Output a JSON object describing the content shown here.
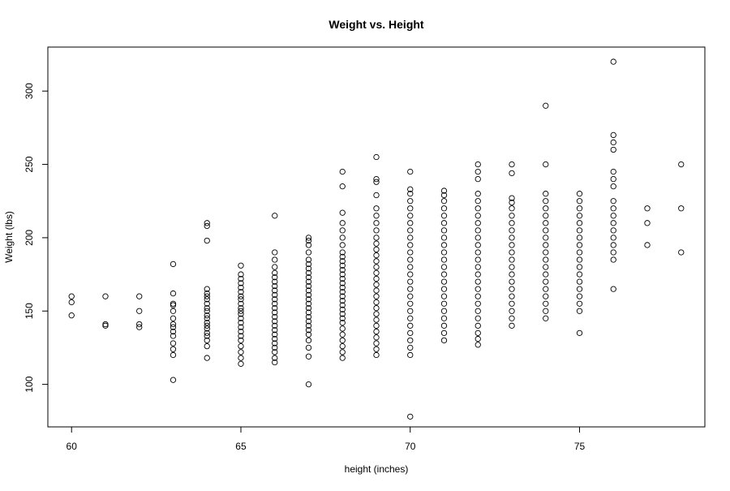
{
  "chart_data": {
    "type": "scatter",
    "title": "Weight vs. Height",
    "xlabel": "height (inches)",
    "ylabel": "Weight (lbs)",
    "xlim": [
      59.3,
      78.7
    ],
    "ylim": [
      71,
      330
    ],
    "xticks": [
      60,
      65,
      70,
      75
    ],
    "yticks": [
      100,
      150,
      200,
      250,
      300
    ],
    "grid": false,
    "legend": "none",
    "marker": "open-circle",
    "colors": {
      "points": "#000000",
      "axes": "#000000",
      "background": "#ffffff"
    },
    "points": [
      [
        60,
        147
      ],
      [
        60,
        156
      ],
      [
        60,
        160
      ],
      [
        61,
        140
      ],
      [
        61,
        141
      ],
      [
        61,
        160
      ],
      [
        62,
        139
      ],
      [
        62,
        141
      ],
      [
        62,
        150
      ],
      [
        62,
        160
      ],
      [
        63,
        103
      ],
      [
        63,
        120
      ],
      [
        63,
        124
      ],
      [
        63,
        128
      ],
      [
        63,
        133
      ],
      [
        63,
        136
      ],
      [
        63,
        139
      ],
      [
        63,
        141
      ],
      [
        63,
        145
      ],
      [
        63,
        150
      ],
      [
        63,
        154
      ],
      [
        63,
        155
      ],
      [
        63,
        162
      ],
      [
        63,
        182
      ],
      [
        64,
        118
      ],
      [
        64,
        126
      ],
      [
        64,
        130
      ],
      [
        64,
        133
      ],
      [
        64,
        135
      ],
      [
        64,
        138
      ],
      [
        64,
        140
      ],
      [
        64,
        142
      ],
      [
        64,
        145
      ],
      [
        64,
        147
      ],
      [
        64,
        150
      ],
      [
        64,
        152
      ],
      [
        64,
        155
      ],
      [
        64,
        158
      ],
      [
        64,
        160
      ],
      [
        64,
        162
      ],
      [
        64,
        165
      ],
      [
        64,
        198
      ],
      [
        64,
        208
      ],
      [
        64,
        210
      ],
      [
        65,
        114
      ],
      [
        65,
        118
      ],
      [
        65,
        122
      ],
      [
        65,
        126
      ],
      [
        65,
        130
      ],
      [
        65,
        133
      ],
      [
        65,
        136
      ],
      [
        65,
        139
      ],
      [
        65,
        142
      ],
      [
        65,
        145
      ],
      [
        65,
        148
      ],
      [
        65,
        150
      ],
      [
        65,
        152
      ],
      [
        65,
        155
      ],
      [
        65,
        158
      ],
      [
        65,
        160
      ],
      [
        65,
        163
      ],
      [
        65,
        166
      ],
      [
        65,
        169
      ],
      [
        65,
        172
      ],
      [
        65,
        175
      ],
      [
        65,
        181
      ],
      [
        66,
        115
      ],
      [
        66,
        118
      ],
      [
        66,
        122
      ],
      [
        66,
        125
      ],
      [
        66,
        128
      ],
      [
        66,
        131
      ],
      [
        66,
        134
      ],
      [
        66,
        137
      ],
      [
        66,
        140
      ],
      [
        66,
        143
      ],
      [
        66,
        146
      ],
      [
        66,
        149
      ],
      [
        66,
        152
      ],
      [
        66,
        155
      ],
      [
        66,
        158
      ],
      [
        66,
        161
      ],
      [
        66,
        164
      ],
      [
        66,
        167
      ],
      [
        66,
        170
      ],
      [
        66,
        173
      ],
      [
        66,
        176
      ],
      [
        66,
        180
      ],
      [
        66,
        185
      ],
      [
        66,
        190
      ],
      [
        66,
        215
      ],
      [
        67,
        100
      ],
      [
        67,
        119
      ],
      [
        67,
        125
      ],
      [
        67,
        130
      ],
      [
        67,
        134
      ],
      [
        67,
        137
      ],
      [
        67,
        140
      ],
      [
        67,
        143
      ],
      [
        67,
        146
      ],
      [
        67,
        149
      ],
      [
        67,
        152
      ],
      [
        67,
        155
      ],
      [
        67,
        158
      ],
      [
        67,
        161
      ],
      [
        67,
        164
      ],
      [
        67,
        167
      ],
      [
        67,
        170
      ],
      [
        67,
        173
      ],
      [
        67,
        176
      ],
      [
        67,
        179
      ],
      [
        67,
        182
      ],
      [
        67,
        185
      ],
      [
        67,
        190
      ],
      [
        67,
        195
      ],
      [
        67,
        198
      ],
      [
        67,
        200
      ],
      [
        68,
        118
      ],
      [
        68,
        122
      ],
      [
        68,
        126
      ],
      [
        68,
        130
      ],
      [
        68,
        134
      ],
      [
        68,
        138
      ],
      [
        68,
        142
      ],
      [
        68,
        145
      ],
      [
        68,
        148
      ],
      [
        68,
        151
      ],
      [
        68,
        154
      ],
      [
        68,
        157
      ],
      [
        68,
        160
      ],
      [
        68,
        163
      ],
      [
        68,
        166
      ],
      [
        68,
        169
      ],
      [
        68,
        172
      ],
      [
        68,
        175
      ],
      [
        68,
        178
      ],
      [
        68,
        181
      ],
      [
        68,
        184
      ],
      [
        68,
        187
      ],
      [
        68,
        190
      ],
      [
        68,
        195
      ],
      [
        68,
        200
      ],
      [
        68,
        205
      ],
      [
        68,
        210
      ],
      [
        68,
        217
      ],
      [
        68,
        235
      ],
      [
        68,
        245
      ],
      [
        69,
        120
      ],
      [
        69,
        124
      ],
      [
        69,
        128
      ],
      [
        69,
        132
      ],
      [
        69,
        136
      ],
      [
        69,
        140
      ],
      [
        69,
        144
      ],
      [
        69,
        148
      ],
      [
        69,
        152
      ],
      [
        69,
        156
      ],
      [
        69,
        160
      ],
      [
        69,
        164
      ],
      [
        69,
        168
      ],
      [
        69,
        172
      ],
      [
        69,
        176
      ],
      [
        69,
        180
      ],
      [
        69,
        184
      ],
      [
        69,
        188
      ],
      [
        69,
        192
      ],
      [
        69,
        196
      ],
      [
        69,
        200
      ],
      [
        69,
        205
      ],
      [
        69,
        210
      ],
      [
        69,
        215
      ],
      [
        69,
        220
      ],
      [
        69,
        229
      ],
      [
        69,
        238
      ],
      [
        69,
        240
      ],
      [
        69,
        255
      ],
      [
        70,
        78
      ],
      [
        70,
        120
      ],
      [
        70,
        125
      ],
      [
        70,
        130
      ],
      [
        70,
        135
      ],
      [
        70,
        140
      ],
      [
        70,
        145
      ],
      [
        70,
        150
      ],
      [
        70,
        155
      ],
      [
        70,
        160
      ],
      [
        70,
        165
      ],
      [
        70,
        170
      ],
      [
        70,
        175
      ],
      [
        70,
        180
      ],
      [
        70,
        185
      ],
      [
        70,
        190
      ],
      [
        70,
        195
      ],
      [
        70,
        200
      ],
      [
        70,
        205
      ],
      [
        70,
        210
      ],
      [
        70,
        215
      ],
      [
        70,
        220
      ],
      [
        70,
        225
      ],
      [
        70,
        230
      ],
      [
        70,
        233
      ],
      [
        70,
        245
      ],
      [
        71,
        130
      ],
      [
        71,
        135
      ],
      [
        71,
        140
      ],
      [
        71,
        145
      ],
      [
        71,
        150
      ],
      [
        71,
        155
      ],
      [
        71,
        160
      ],
      [
        71,
        165
      ],
      [
        71,
        170
      ],
      [
        71,
        175
      ],
      [
        71,
        180
      ],
      [
        71,
        185
      ],
      [
        71,
        190
      ],
      [
        71,
        195
      ],
      [
        71,
        200
      ],
      [
        71,
        205
      ],
      [
        71,
        210
      ],
      [
        71,
        215
      ],
      [
        71,
        220
      ],
      [
        71,
        225
      ],
      [
        71,
        229
      ],
      [
        71,
        232
      ],
      [
        72,
        127
      ],
      [
        72,
        131
      ],
      [
        72,
        135
      ],
      [
        72,
        140
      ],
      [
        72,
        145
      ],
      [
        72,
        150
      ],
      [
        72,
        155
      ],
      [
        72,
        160
      ],
      [
        72,
        165
      ],
      [
        72,
        170
      ],
      [
        72,
        175
      ],
      [
        72,
        180
      ],
      [
        72,
        185
      ],
      [
        72,
        190
      ],
      [
        72,
        195
      ],
      [
        72,
        200
      ],
      [
        72,
        205
      ],
      [
        72,
        210
      ],
      [
        72,
        215
      ],
      [
        72,
        220
      ],
      [
        72,
        225
      ],
      [
        72,
        230
      ],
      [
        72,
        240
      ],
      [
        72,
        245
      ],
      [
        72,
        250
      ],
      [
        73,
        140
      ],
      [
        73,
        145
      ],
      [
        73,
        150
      ],
      [
        73,
        155
      ],
      [
        73,
        160
      ],
      [
        73,
        165
      ],
      [
        73,
        170
      ],
      [
        73,
        175
      ],
      [
        73,
        180
      ],
      [
        73,
        185
      ],
      [
        73,
        190
      ],
      [
        73,
        195
      ],
      [
        73,
        200
      ],
      [
        73,
        205
      ],
      [
        73,
        210
      ],
      [
        73,
        215
      ],
      [
        73,
        220
      ],
      [
        73,
        224
      ],
      [
        73,
        227
      ],
      [
        73,
        244
      ],
      [
        73,
        250
      ],
      [
        74,
        145
      ],
      [
        74,
        150
      ],
      [
        74,
        155
      ],
      [
        74,
        160
      ],
      [
        74,
        165
      ],
      [
        74,
        170
      ],
      [
        74,
        175
      ],
      [
        74,
        180
      ],
      [
        74,
        185
      ],
      [
        74,
        190
      ],
      [
        74,
        195
      ],
      [
        74,
        200
      ],
      [
        74,
        205
      ],
      [
        74,
        210
      ],
      [
        74,
        215
      ],
      [
        74,
        220
      ],
      [
        74,
        225
      ],
      [
        74,
        230
      ],
      [
        74,
        250
      ],
      [
        74,
        290
      ],
      [
        75,
        135
      ],
      [
        75,
        150
      ],
      [
        75,
        155
      ],
      [
        75,
        160
      ],
      [
        75,
        165
      ],
      [
        75,
        170
      ],
      [
        75,
        175
      ],
      [
        75,
        180
      ],
      [
        75,
        185
      ],
      [
        75,
        190
      ],
      [
        75,
        195
      ],
      [
        75,
        200
      ],
      [
        75,
        205
      ],
      [
        75,
        210
      ],
      [
        75,
        215
      ],
      [
        75,
        220
      ],
      [
        75,
        225
      ],
      [
        75,
        230
      ],
      [
        76,
        165
      ],
      [
        76,
        185
      ],
      [
        76,
        190
      ],
      [
        76,
        195
      ],
      [
        76,
        200
      ],
      [
        76,
        205
      ],
      [
        76,
        210
      ],
      [
        76,
        215
      ],
      [
        76,
        220
      ],
      [
        76,
        225
      ],
      [
        76,
        235
      ],
      [
        76,
        240
      ],
      [
        76,
        245
      ],
      [
        76,
        260
      ],
      [
        76,
        265
      ],
      [
        76,
        270
      ],
      [
        76,
        320
      ],
      [
        77,
        195
      ],
      [
        77,
        210
      ],
      [
        77,
        220
      ],
      [
        78,
        190
      ],
      [
        78,
        220
      ],
      [
        78,
        250
      ]
    ]
  }
}
